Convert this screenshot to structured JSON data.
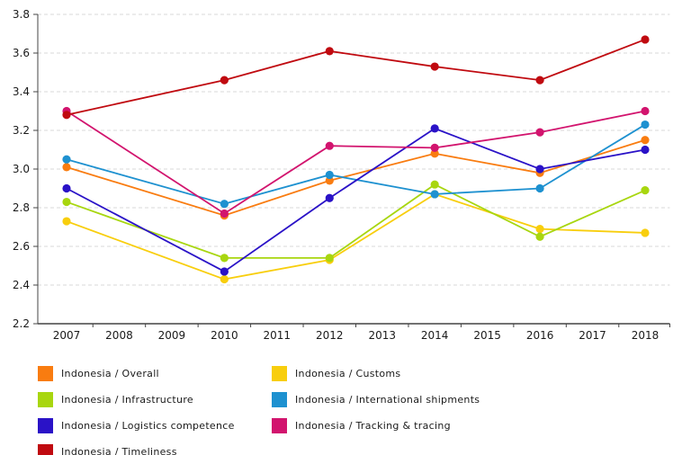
{
  "chart_style": {
    "background": "#ffffff",
    "axis_color": "#444444",
    "grid_color": "#d9d9d9",
    "label_color": "#1a1a1a",
    "line_width": 1.8,
    "marker_radius": 4.6
  },
  "chart_data": {
    "type": "line",
    "title": "",
    "xlabel": "",
    "ylabel": "",
    "x": [
      2007,
      2010,
      2012,
      2014,
      2016,
      2018
    ],
    "x_axis_ticks": [
      2007,
      2008,
      2009,
      2010,
      2011,
      2012,
      2013,
      2014,
      2015,
      2016,
      2017,
      2018
    ],
    "ylim": [
      2.2,
      3.8
    ],
    "y_ticks": [
      2.2,
      2.4,
      2.6,
      2.8,
      3.0,
      3.2,
      3.4,
      3.6,
      3.8
    ],
    "grid": "horizontal-dashed",
    "legend_position": "bottom",
    "marker": "circle",
    "series": [
      {
        "name": "Indonesia / Overall",
        "color": "#f97c10",
        "values": [
          3.01,
          2.76,
          2.94,
          3.08,
          2.98,
          3.15
        ]
      },
      {
        "name": "Indonesia / Customs",
        "color": "#f8ce0d",
        "values": [
          2.73,
          2.43,
          2.53,
          2.87,
          2.69,
          2.67
        ]
      },
      {
        "name": "Indonesia / Infrastructure",
        "color": "#a8d60f",
        "values": [
          2.83,
          2.54,
          2.54,
          2.92,
          2.65,
          2.89
        ]
      },
      {
        "name": "Indonesia / International shipments",
        "color": "#1e91d0",
        "values": [
          3.05,
          2.82,
          2.97,
          2.87,
          2.9,
          3.23
        ]
      },
      {
        "name": "Indonesia / Logistics competence",
        "color": "#2a12c7",
        "values": [
          2.9,
          2.47,
          2.85,
          3.21,
          3.0,
          3.1
        ]
      },
      {
        "name": "Indonesia / Tracking & tracing",
        "color": "#d2146e",
        "values": [
          3.3,
          2.77,
          3.12,
          3.11,
          3.19,
          3.3
        ]
      },
      {
        "name": "Indonesia / Timeliness",
        "color": "#c00a10",
        "values": [
          3.28,
          3.46,
          3.61,
          3.53,
          3.46,
          3.67
        ]
      }
    ]
  }
}
